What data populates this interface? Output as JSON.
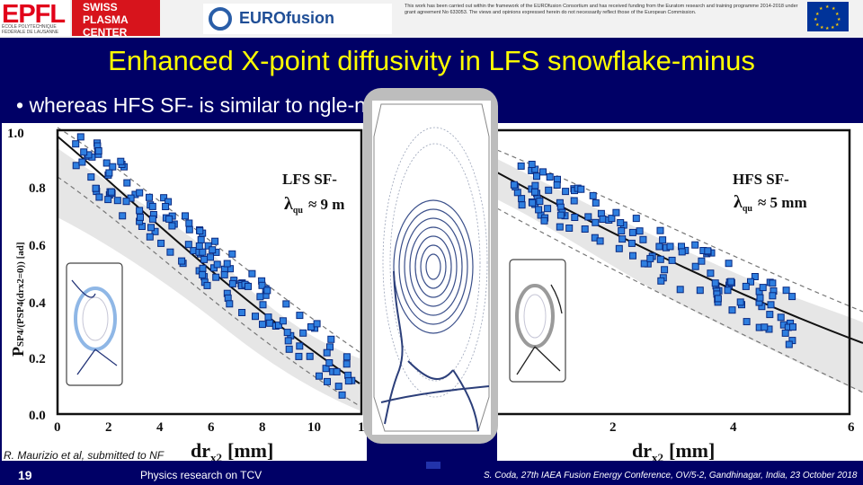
{
  "header": {
    "epfl_logo": "EPFL",
    "epfl_subtitle": "ÉCOLE POLYTECHNIQUE FÉDÉRALE DE LAUSANNE",
    "spc_line1": "SWISS PLASMA",
    "spc_line2": "CENTER",
    "eurofusion": "EUROfusion",
    "funding_text": "This work has been carried out within the framework of the EUROfusion Consortium and has received funding from the Euratom research and training programme 2014-2018 under grant agreement No 633053. The views and opinions expressed herein do not necessarily reflect those of the European Commission."
  },
  "slide": {
    "title": "Enhanced X-point diffusivity in LFS snowflake-minus",
    "bullet": "•  whereas HFS SF- is similar to                     ngle-null"
  },
  "plot_left": {
    "ylabel": "P",
    "ylabel_rest": "SP4/(PSP4(drx2=0)) [ad]",
    "xlabel": "dr",
    "xlabel_sub": "x2",
    "xlabel_unit": "[mm]",
    "yticks": [
      "1.0",
      "0.8",
      "0.6",
      "0.4",
      "0.2",
      "0.0"
    ],
    "xticks": [
      "0",
      "2",
      "4",
      "6",
      "8",
      "10",
      "1"
    ],
    "label_line1": "LFS SF-",
    "label_lambda": "λ",
    "label_value": "≈ 9 m"
  },
  "plot_right": {
    "xlabel": "dr",
    "xlabel_sub": "x2",
    "xlabel_unit": "[mm]",
    "xticks": [
      "2",
      "4",
      "6"
    ],
    "label_line1": "HFS SF-",
    "label_lambda": "λ",
    "label_value": "≈ 5 mm"
  },
  "reference": "R. Maurizio et al, submitted to NF",
  "footer": {
    "page": "19",
    "middle": "Physics research on TCV",
    "right": "S. Coda, 27th IAEA Fusion Energy Conference, OV/5-2, Gandhinagar, India, 23 October 2018"
  },
  "colors": {
    "background": "#000066",
    "title": "#ffff00",
    "marker": "#2f7fe0",
    "band": "#e4e4e4"
  }
}
